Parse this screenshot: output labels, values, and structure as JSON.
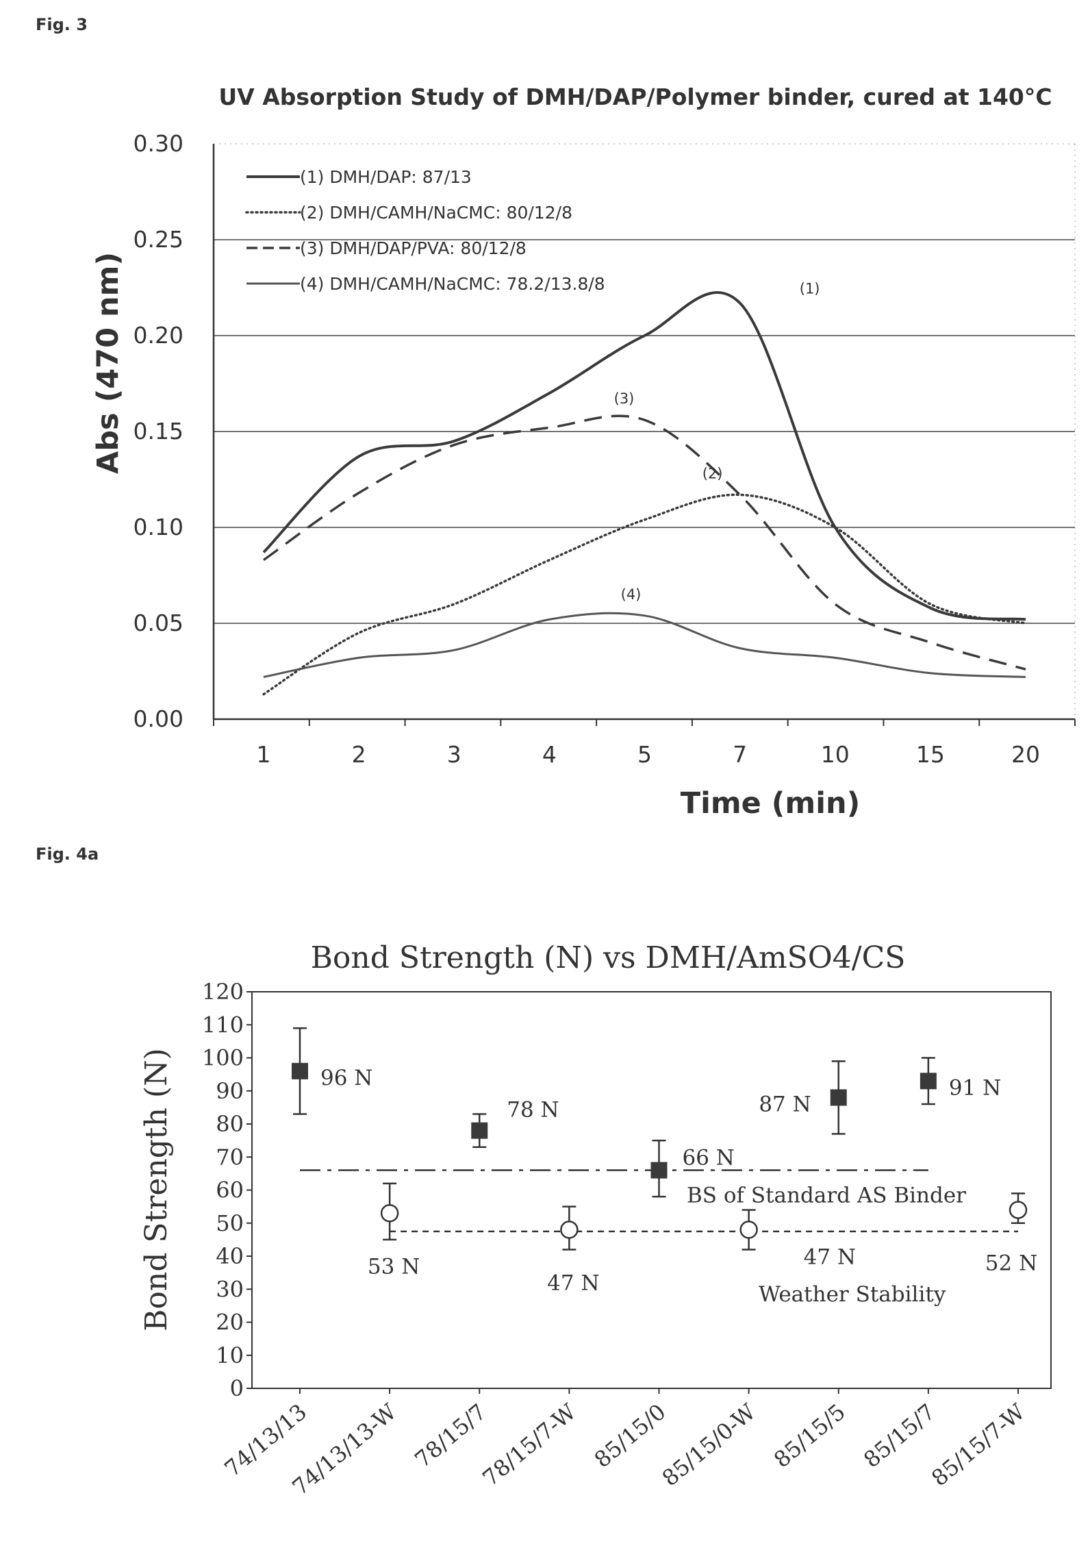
{
  "fig3_label": "Fig. 3",
  "fig4a_label": "Fig. 4a",
  "chart_data": [
    {
      "type": "line",
      "title": "UV Absorption Study of DMH/DAP/Polymer binder, cured at 140°C",
      "xlabel": "Time (min)",
      "ylabel": "Abs (470 nm)",
      "categories": [
        "1",
        "2",
        "3",
        "4",
        "5",
        "7",
        "10",
        "15",
        "20"
      ],
      "ylim": [
        0,
        0.3
      ],
      "yticks": [
        "0.00",
        "0.05",
        "0.10",
        "0.15",
        "0.20",
        "0.25",
        "0.30"
      ],
      "grid": "horizontal at 0.05, 0.10, 0.15, 0.20, 0.25",
      "legend_position": "top-left",
      "series": [
        {
          "name": "(1) DMH/DAP: 87/13",
          "style": "solid",
          "color": "#3a3a3a",
          "values": [
            0.087,
            0.137,
            0.145,
            0.17,
            0.2,
            0.217,
            0.1,
            0.058,
            0.052
          ],
          "annotation": "(1)"
        },
        {
          "name": "(2) DMH/CAMH/NaCMC: 80/12/8",
          "style": "dotted",
          "color": "#3a3a3a",
          "values": [
            0.013,
            0.045,
            0.06,
            0.083,
            0.104,
            0.117,
            0.1,
            0.06,
            0.05
          ],
          "annotation": "(2)"
        },
        {
          "name": "(3) DMH/DAP/PVA: 80/12/8",
          "style": "dashed",
          "color": "#3a3a3a",
          "values": [
            0.083,
            0.118,
            0.143,
            0.152,
            0.156,
            0.117,
            0.06,
            0.04,
            0.026
          ],
          "annotation": "(3)"
        },
        {
          "name": "(4) DMH/CAMH/NaCMC: 78.2/13.8/8",
          "style": "double",
          "color": "#555555",
          "values": [
            0.022,
            0.032,
            0.036,
            0.052,
            0.054,
            0.037,
            0.032,
            0.024,
            0.022
          ],
          "annotation": "(4)"
        }
      ]
    },
    {
      "type": "scatter",
      "title": "Bond Strength (N) vs DMH/AmSO4/CS",
      "ylabel": "Bond Strength (N)",
      "xlabel": "",
      "ylim": [
        0,
        120
      ],
      "yticks": [
        "0",
        "10",
        "20",
        "30",
        "40",
        "50",
        "60",
        "70",
        "80",
        "90",
        "100",
        "110",
        "120"
      ],
      "categories": [
        "74/13/13",
        "74/13/13-W",
        "78/15/7",
        "78/15/7-W",
        "85/15/0",
        "85/15/0-W",
        "85/15/5",
        "85/15/7",
        "85/15/7-W"
      ],
      "points": [
        {
          "category": "74/13/13",
          "value": 96,
          "err_low": 83,
          "err_high": 109,
          "marker": "filled-square",
          "label": "96 N"
        },
        {
          "category": "74/13/13-W",
          "value": 53,
          "err_low": 45,
          "err_high": 62,
          "marker": "open-circle",
          "label": "53 N"
        },
        {
          "category": "78/15/7",
          "value": 78,
          "err_low": 73,
          "err_high": 83,
          "marker": "filled-square",
          "label": "78 N"
        },
        {
          "category": "78/15/7-W",
          "value": 48,
          "err_low": 42,
          "err_high": 55,
          "marker": "open-circle",
          "label": "47 N"
        },
        {
          "category": "85/15/0",
          "value": 66,
          "err_low": 58,
          "err_high": 75,
          "marker": "filled-square",
          "label": "66 N"
        },
        {
          "category": "85/15/0-W",
          "value": 48,
          "err_low": 42,
          "err_high": 54,
          "marker": "open-circle",
          "label": "47 N"
        },
        {
          "category": "85/15/5",
          "value": 88,
          "err_low": 77,
          "err_high": 99,
          "marker": "filled-square",
          "label": "87 N"
        },
        {
          "category": "85/15/7",
          "value": 93,
          "err_low": 86,
          "err_high": 100,
          "marker": "filled-square",
          "label": "91 N"
        },
        {
          "category": "85/15/7-W",
          "value": 54,
          "err_low": 50,
          "err_high": 59,
          "marker": "open-circle",
          "label": "52 N"
        }
      ],
      "reference_lines": [
        {
          "label": "BS of Standard AS Binder",
          "value": 66,
          "style": "dash-dot",
          "from": "74/13/13",
          "to": "85/15/7"
        },
        {
          "label": "Weather Stability",
          "value": 47.5,
          "style": "dashed",
          "from": "74/13/13-W",
          "to": "85/15/7-W"
        }
      ]
    }
  ]
}
